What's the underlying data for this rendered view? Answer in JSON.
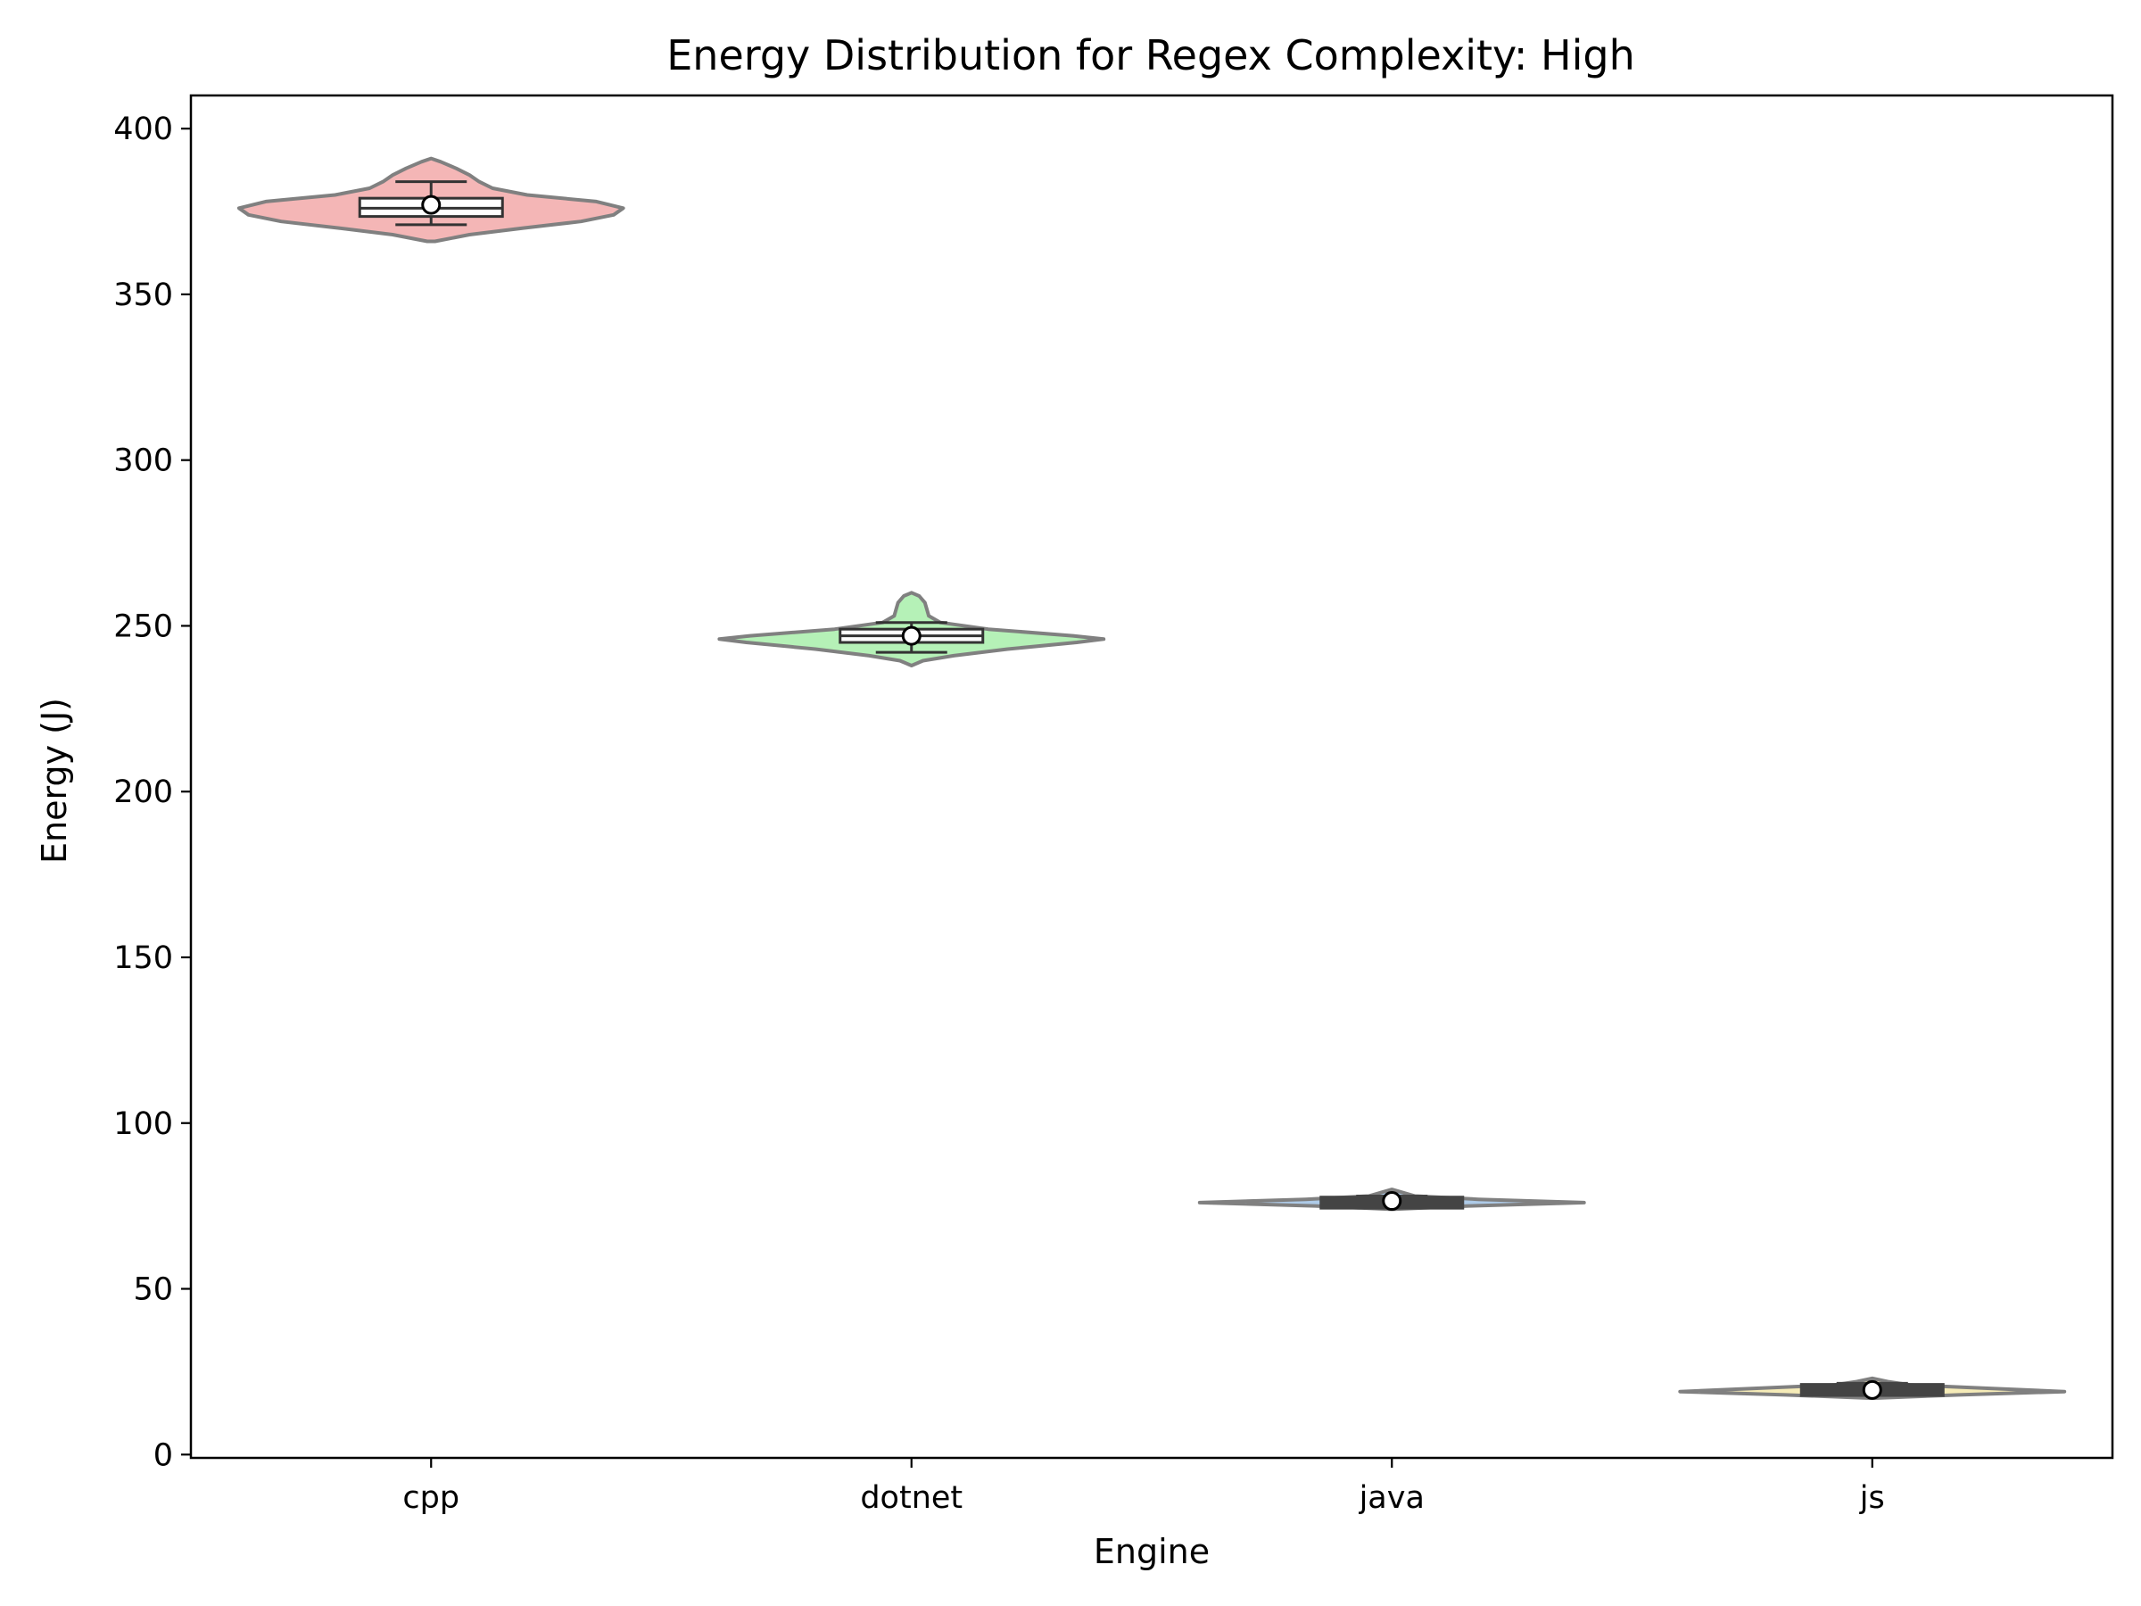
{
  "chart_data": {
    "type": "violin",
    "title": "Energy Distribution for Regex Complexity: High",
    "xlabel": "Engine",
    "ylabel": "Energy (J)",
    "ylim": [
      -1,
      410
    ],
    "yticks": [
      0,
      50,
      100,
      150,
      200,
      250,
      300,
      350,
      400
    ],
    "categories": [
      "cpp",
      "dotnet",
      "java",
      "js"
    ],
    "grid": false,
    "legend": "none",
    "series": [
      {
        "category": "cpp",
        "color": "#f4b6b6",
        "min": 366,
        "max": 391,
        "box": {
          "q1": 373.5,
          "median": 376,
          "q3": 379,
          "whisker_low": 371,
          "whisker_high": 384
        },
        "mean": 377,
        "density": [
          [
            366,
            0.02
          ],
          [
            368,
            0.2
          ],
          [
            370,
            0.48
          ],
          [
            372,
            0.78
          ],
          [
            374,
            0.95
          ],
          [
            376,
            1.0
          ],
          [
            378,
            0.86
          ],
          [
            380,
            0.5
          ],
          [
            382,
            0.32
          ],
          [
            384,
            0.25
          ],
          [
            386,
            0.2
          ],
          [
            388,
            0.13
          ],
          [
            390,
            0.05
          ],
          [
            391,
            0.0
          ]
        ]
      },
      {
        "category": "dotnet",
        "color": "#b5f1b7",
        "min": 238,
        "max": 260,
        "box": {
          "q1": 245,
          "median": 247,
          "q3": 249,
          "whisker_low": 242,
          "whisker_high": 251
        },
        "mean": 247,
        "density": [
          [
            238,
            0.0
          ],
          [
            239.5,
            0.06
          ],
          [
            241,
            0.22
          ],
          [
            243,
            0.5
          ],
          [
            245,
            0.86
          ],
          [
            246,
            1.0
          ],
          [
            247,
            0.84
          ],
          [
            249,
            0.4
          ],
          [
            251,
            0.15
          ],
          [
            253,
            0.09
          ],
          [
            255,
            0.08
          ],
          [
            257,
            0.07
          ],
          [
            259,
            0.04
          ],
          [
            260,
            0.0
          ]
        ]
      },
      {
        "category": "java",
        "color": "#aecbe8",
        "min": 74,
        "max": 80,
        "box": {
          "q1": 75,
          "median": 76,
          "q3": 77,
          "whisker_low": 74.5,
          "whisker_high": 78
        },
        "mean": 76.5,
        "density": [
          [
            74,
            0.0
          ],
          [
            75,
            0.4
          ],
          [
            76,
            1.0
          ],
          [
            77,
            0.45
          ],
          [
            78,
            0.12
          ],
          [
            79,
            0.06
          ],
          [
            80,
            0.0
          ]
        ]
      },
      {
        "category": "js",
        "color": "#f6ecb8",
        "min": 17,
        "max": 23,
        "box": {
          "q1": 18.5,
          "median": 19,
          "q3": 20.5,
          "whisker_low": 17.5,
          "whisker_high": 21.5
        },
        "mean": 19.5,
        "density": [
          [
            17,
            0.0
          ],
          [
            18,
            0.45
          ],
          [
            19,
            1.0
          ],
          [
            20,
            0.6
          ],
          [
            21,
            0.2
          ],
          [
            22,
            0.08
          ],
          [
            23,
            0.0
          ]
        ]
      }
    ]
  }
}
